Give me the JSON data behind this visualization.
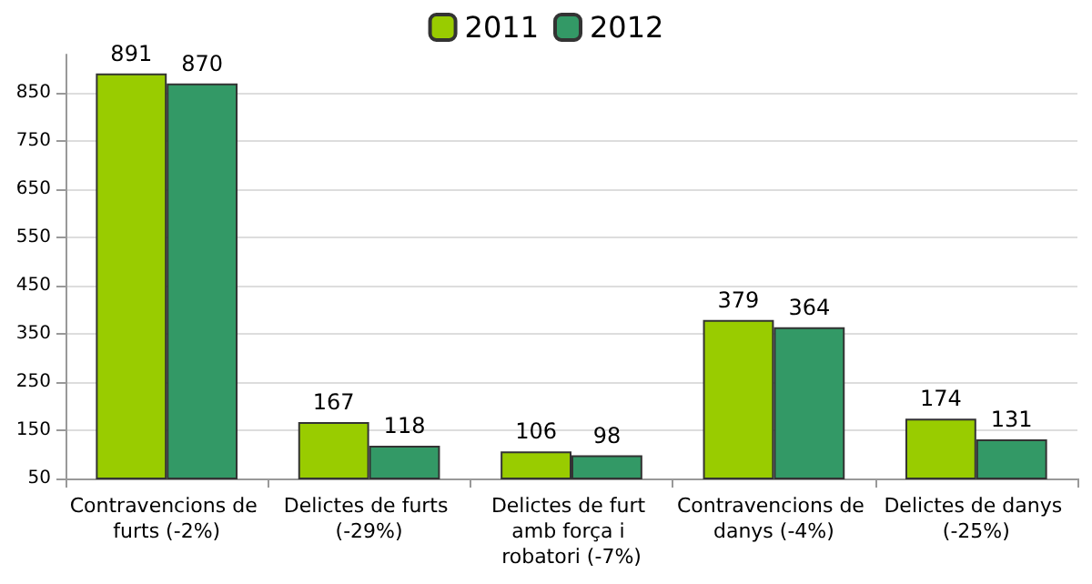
{
  "chart_data": {
    "type": "bar",
    "categories": [
      "Contravencions de furts (-2%)",
      "Delictes de furts (-29%)",
      "Delictes de furt amb força i robatori (-7%)",
      "Contravencions de danys (-4%)",
      "Delictes de danys (-25%)"
    ],
    "series": [
      {
        "name": "2011",
        "color": "#99cc00",
        "values": [
          891,
          167,
          106,
          379,
          174
        ]
      },
      {
        "name": "2012",
        "color": "#339966",
        "values": [
          870,
          118,
          98,
          364,
          131
        ]
      }
    ],
    "ylim": [
      50,
      930
    ],
    "yticks": [
      50,
      150,
      250,
      350,
      450,
      550,
      650,
      750,
      850
    ],
    "grid": "y",
    "legend": "top",
    "data_labels": true
  }
}
